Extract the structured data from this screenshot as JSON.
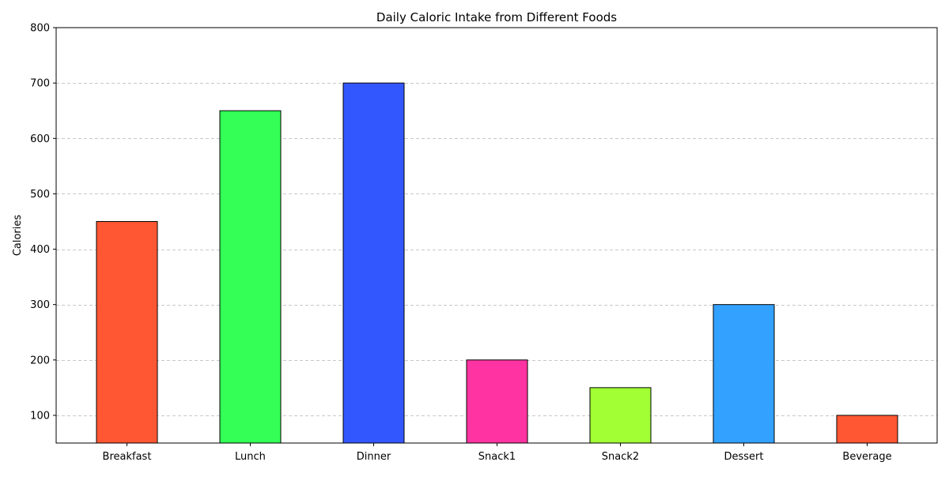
{
  "chart_data": {
    "type": "bar",
    "title": "Daily Caloric Intake from Different Foods",
    "xlabel": "",
    "ylabel": "Calories",
    "categories": [
      "Breakfast",
      "Lunch",
      "Dinner",
      "Snack1",
      "Snack2",
      "Dessert",
      "Beverage"
    ],
    "values": [
      450,
      650,
      700,
      200,
      150,
      300,
      100
    ],
    "colors": [
      "#FF5733",
      "#33FF57",
      "#3357FF",
      "#FF33A1",
      "#A1FF33",
      "#33A1FF",
      "#FF5733"
    ],
    "bar_edge_color": "#000000",
    "ylim": [
      50,
      800
    ],
    "yticks": [
      100,
      200,
      300,
      400,
      500,
      600,
      700,
      800
    ],
    "grid": {
      "axis": "y",
      "style": "dashed",
      "color": "#c8c8c8"
    }
  }
}
